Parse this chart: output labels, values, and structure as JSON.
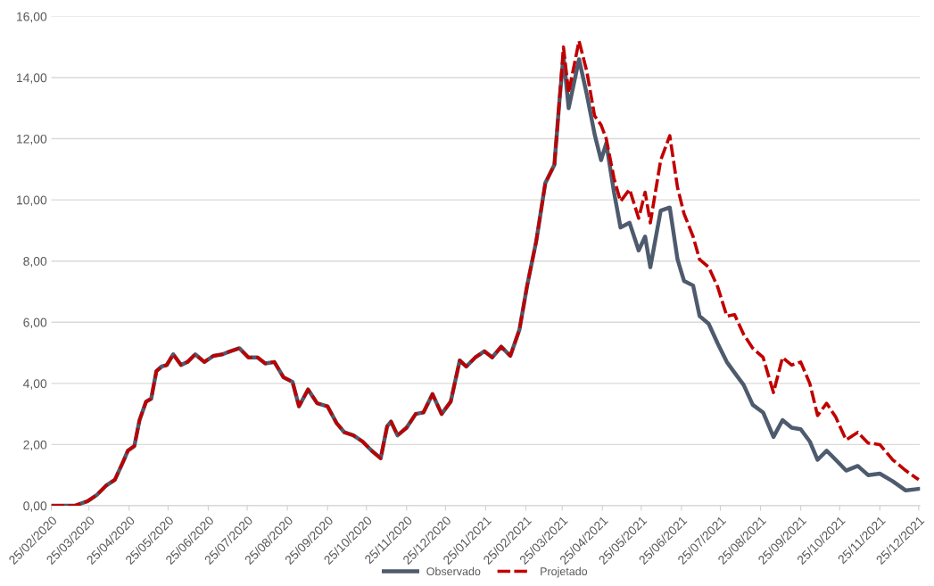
{
  "chart_data": {
    "type": "line",
    "x": [
      "2020-02-25",
      "2020-03-14",
      "2020-03-24",
      "2020-03-31",
      "2020-04-07",
      "2020-04-14",
      "2020-04-21",
      "2020-04-24",
      "2020-04-29",
      "2020-05-03",
      "2020-05-08",
      "2020-05-12",
      "2020-05-16",
      "2020-05-20",
      "2020-05-24",
      "2020-05-29",
      "2020-06-04",
      "2020-06-09",
      "2020-06-15",
      "2020-06-22",
      "2020-06-29",
      "2020-07-06",
      "2020-07-12",
      "2020-07-19",
      "2020-07-26",
      "2020-08-02",
      "2020-08-08",
      "2020-08-15",
      "2020-08-22",
      "2020-08-29",
      "2020-09-03",
      "2020-09-10",
      "2020-09-17",
      "2020-09-25",
      "2020-10-02",
      "2020-10-08",
      "2020-10-15",
      "2020-10-22",
      "2020-10-29",
      "2020-11-05",
      "2020-11-10",
      "2020-11-13",
      "2020-11-18",
      "2020-11-25",
      "2020-12-02",
      "2020-12-08",
      "2020-12-15",
      "2020-12-22",
      "2020-12-29",
      "2021-01-05",
      "2021-01-10",
      "2021-01-17",
      "2021-01-24",
      "2021-01-30",
      "2021-02-06",
      "2021-02-13",
      "2021-02-20",
      "2021-02-26",
      "2021-03-05",
      "2021-03-12",
      "2021-03-19",
      "2021-03-23",
      "2021-03-26",
      "2021-03-30",
      "2021-04-07",
      "2021-04-13",
      "2021-04-19",
      "2021-04-24",
      "2021-04-28",
      "2021-05-04",
      "2021-05-09",
      "2021-05-16",
      "2021-05-23",
      "2021-05-28",
      "2021-06-01",
      "2021-06-09",
      "2021-06-16",
      "2021-06-22",
      "2021-06-27",
      "2021-07-04",
      "2021-07-09",
      "2021-07-16",
      "2021-07-23",
      "2021-07-30",
      "2021-08-05",
      "2021-08-12",
      "2021-08-19",
      "2021-08-27",
      "2021-09-04",
      "2021-09-11",
      "2021-09-18",
      "2021-09-25",
      "2021-10-02",
      "2021-10-08",
      "2021-10-15",
      "2021-10-22",
      "2021-10-30",
      "2021-11-08",
      "2021-11-16",
      "2021-11-25",
      "2021-12-05",
      "2021-12-15",
      "2021-12-25"
    ],
    "series": [
      {
        "name": "Observado",
        "color": "#4e5b6e",
        "line_style": "solid",
        "values": [
          0,
          0,
          0.15,
          0.35,
          0.65,
          0.85,
          1.5,
          1.8,
          1.95,
          2.8,
          3.4,
          3.5,
          4.4,
          4.55,
          4.6,
          4.95,
          4.6,
          4.7,
          4.95,
          4.7,
          4.9,
          4.95,
          5.05,
          5.15,
          4.85,
          4.85,
          4.65,
          4.7,
          4.2,
          4.05,
          3.25,
          3.8,
          3.35,
          3.25,
          2.7,
          2.4,
          2.3,
          2.1,
          1.8,
          1.55,
          2.6,
          2.75,
          2.3,
          2.55,
          3.0,
          3.05,
          3.65,
          3.0,
          3.4,
          4.75,
          4.55,
          4.85,
          5.05,
          4.85,
          5.2,
          4.9,
          5.75,
          7.2,
          8.65,
          10.55,
          11.15,
          13.3,
          14.7,
          13.0,
          14.6,
          13.45,
          12.15,
          11.3,
          11.85,
          10.25,
          9.1,
          9.25,
          8.35,
          8.8,
          7.8,
          9.65,
          9.75,
          8.05,
          7.35,
          7.2,
          6.2,
          5.95,
          5.3,
          4.7,
          4.35,
          3.95,
          3.3,
          3.05,
          2.25,
          2.8,
          2.55,
          2.5,
          2.1,
          1.5,
          1.8,
          1.5,
          1.15,
          1.3,
          1.0,
          1.05,
          0.8,
          0.5,
          0.55
        ]
      },
      {
        "name": "Projetado",
        "color": "#c00000",
        "line_style": "dashed",
        "values": [
          0,
          0,
          0.15,
          0.35,
          0.65,
          0.85,
          1.5,
          1.8,
          1.95,
          2.8,
          3.4,
          3.5,
          4.4,
          4.55,
          4.6,
          4.95,
          4.6,
          4.7,
          4.95,
          4.7,
          4.9,
          4.95,
          5.05,
          5.15,
          4.85,
          4.85,
          4.65,
          4.7,
          4.2,
          4.05,
          3.25,
          3.8,
          3.35,
          3.25,
          2.7,
          2.4,
          2.3,
          2.1,
          1.8,
          1.55,
          2.6,
          2.75,
          2.3,
          2.55,
          3.0,
          3.05,
          3.65,
          3.0,
          3.4,
          4.75,
          4.55,
          4.85,
          5.05,
          4.85,
          5.2,
          4.9,
          5.75,
          7.2,
          8.65,
          10.55,
          11.15,
          13.3,
          15.0,
          13.5,
          15.2,
          14.2,
          12.75,
          12.45,
          12.0,
          10.7,
          9.95,
          10.35,
          9.4,
          10.25,
          9.25,
          11.3,
          12.1,
          10.4,
          9.55,
          8.8,
          8.05,
          7.8,
          7.15,
          6.2,
          6.25,
          5.6,
          5.15,
          4.85,
          3.7,
          4.85,
          4.6,
          4.7,
          4.0,
          2.95,
          3.35,
          2.9,
          2.15,
          2.4,
          2.05,
          2.0,
          1.5,
          1.15,
          0.85
        ]
      }
    ],
    "xlim": [
      "2020-02-25",
      "2021-12-26"
    ],
    "xticks": [
      {
        "value": "2020-02-25",
        "label": "25/02/2020"
      },
      {
        "value": "2020-03-25",
        "label": "25/03/2020"
      },
      {
        "value": "2020-04-25",
        "label": "25/04/2020"
      },
      {
        "value": "2020-05-25",
        "label": "25/05/2020"
      },
      {
        "value": "2020-06-25",
        "label": "25/06/2020"
      },
      {
        "value": "2020-07-25",
        "label": "25/07/2020"
      },
      {
        "value": "2020-08-25",
        "label": "25/08/2020"
      },
      {
        "value": "2020-09-25",
        "label": "25/09/2020"
      },
      {
        "value": "2020-10-25",
        "label": "25/10/2020"
      },
      {
        "value": "2020-11-25",
        "label": "25/11/2020"
      },
      {
        "value": "2020-12-25",
        "label": "25/12/2020"
      },
      {
        "value": "2021-01-25",
        "label": "25/01/2021"
      },
      {
        "value": "2021-02-25",
        "label": "25/02/2021"
      },
      {
        "value": "2021-03-25",
        "label": "25/03/2021"
      },
      {
        "value": "2021-04-25",
        "label": "25/04/2021"
      },
      {
        "value": "2021-05-25",
        "label": "25/05/2021"
      },
      {
        "value": "2021-06-25",
        "label": "25/06/2021"
      },
      {
        "value": "2021-07-25",
        "label": "25/07/2021"
      },
      {
        "value": "2021-08-25",
        "label": "25/08/2021"
      },
      {
        "value": "2021-09-25",
        "label": "25/09/2021"
      },
      {
        "value": "2021-10-25",
        "label": "25/10/2021"
      },
      {
        "value": "2021-11-25",
        "label": "25/11/2021"
      },
      {
        "value": "2021-12-25",
        "label": "25/12/2021"
      }
    ],
    "ylim": [
      0,
      16
    ],
    "yticks": [
      {
        "value": 0,
        "label": "0,00"
      },
      {
        "value": 2,
        "label": "2,00"
      },
      {
        "value": 4,
        "label": "4,00"
      },
      {
        "value": 6,
        "label": "6,00"
      },
      {
        "value": 8,
        "label": "8,00"
      },
      {
        "value": 10,
        "label": "10,00"
      },
      {
        "value": 12,
        "label": "12,00"
      },
      {
        "value": 14,
        "label": "14,00"
      },
      {
        "value": 16,
        "label": "16,00"
      }
    ],
    "grid": "y",
    "legend": "bottom",
    "marker": "none"
  }
}
